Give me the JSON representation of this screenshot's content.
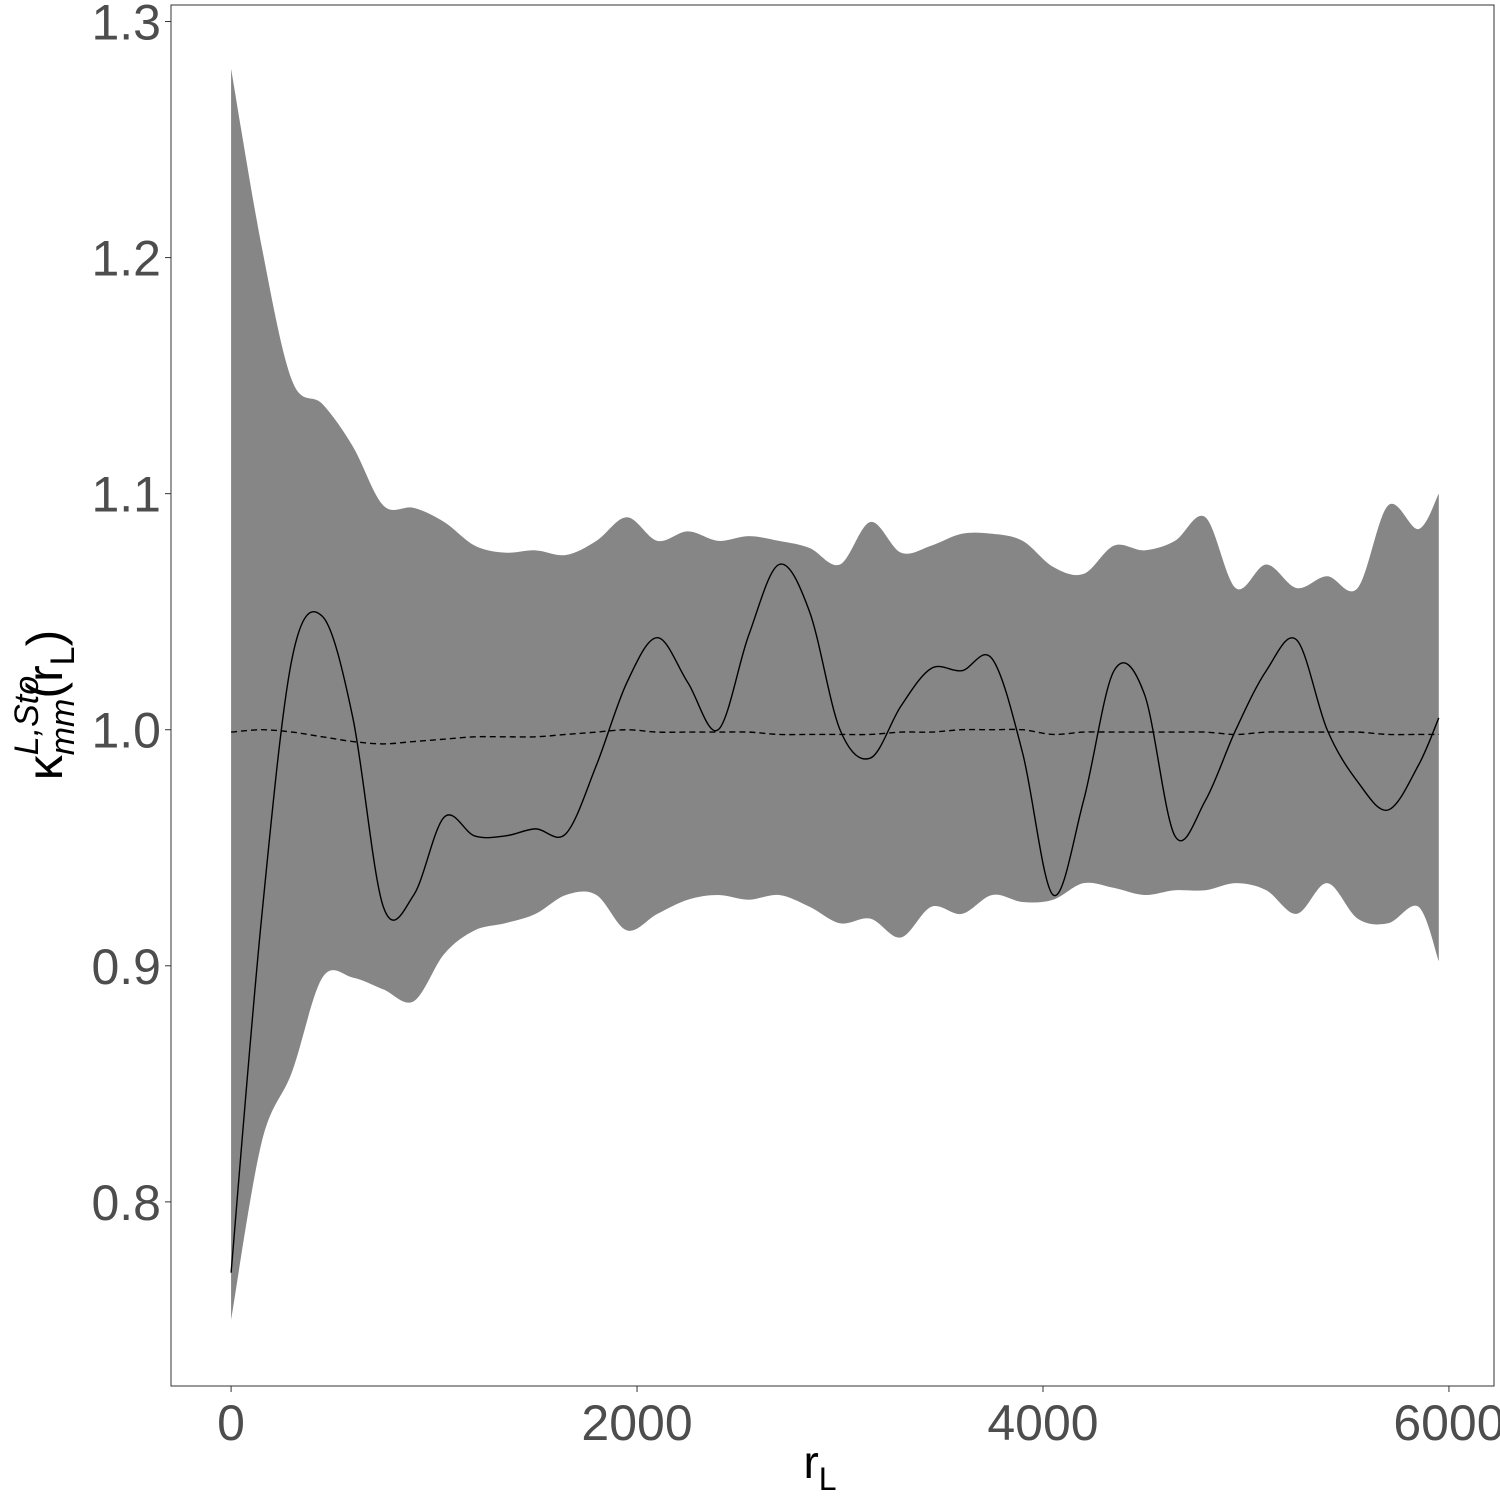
{
  "chart_data": {
    "type": "band-line",
    "x_label": {
      "text": "r",
      "subscript": "L"
    },
    "y_label": {
      "symbol": "κ",
      "superscript": "L,Sto",
      "subscript": "mm",
      "argument": "(r",
      "argument_subscript": "L",
      "closing": ")"
    },
    "x": [
      0,
      150,
      300,
      450,
      600,
      750,
      900,
      1050,
      1200,
      1350,
      1500,
      1650,
      1800,
      1950,
      2100,
      2250,
      2400,
      2550,
      2700,
      2850,
      3000,
      3150,
      3300,
      3450,
      3600,
      3750,
      3900,
      4050,
      4200,
      4350,
      4500,
      4650,
      4800,
      4950,
      5100,
      5250,
      5400,
      5550,
      5700,
      5850,
      5950
    ],
    "band": {
      "color": "#868686",
      "upper": [
        1.28,
        1.205,
        1.148,
        1.138,
        1.12,
        1.095,
        1.094,
        1.088,
        1.078,
        1.075,
        1.076,
        1.074,
        1.08,
        1.09,
        1.08,
        1.084,
        1.08,
        1.082,
        1.08,
        1.077,
        1.07,
        1.088,
        1.075,
        1.078,
        1.083,
        1.083,
        1.08,
        1.069,
        1.066,
        1.078,
        1.076,
        1.08,
        1.09,
        1.06,
        1.07,
        1.06,
        1.065,
        1.06,
        1.095,
        1.085,
        1.1
      ],
      "lower": [
        0.75,
        0.825,
        0.855,
        0.895,
        0.895,
        0.89,
        0.885,
        0.905,
        0.915,
        0.918,
        0.922,
        0.93,
        0.93,
        0.915,
        0.922,
        0.928,
        0.93,
        0.928,
        0.93,
        0.925,
        0.918,
        0.92,
        0.912,
        0.925,
        0.922,
        0.93,
        0.927,
        0.928,
        0.935,
        0.933,
        0.93,
        0.932,
        0.932,
        0.935,
        0.932,
        0.922,
        0.935,
        0.92,
        0.918,
        0.925,
        0.902
      ]
    },
    "observed": {
      "color": "#000000",
      "dash": false,
      "values": [
        0.77,
        0.92,
        1.03,
        1.048,
        1.005,
        0.925,
        0.93,
        0.963,
        0.955,
        0.955,
        0.958,
        0.956,
        0.985,
        1.02,
        1.039,
        1.02,
        1.0,
        1.04,
        1.07,
        1.05,
        1.0,
        0.988,
        1.01,
        1.026,
        1.025,
        1.03,
        0.99,
        0.93,
        0.97,
        1.025,
        1.015,
        0.955,
        0.97,
        1.0,
        1.025,
        1.038,
        1.0,
        0.978,
        0.966,
        0.985,
        1.005
      ]
    },
    "theoretical": {
      "color": "#000000",
      "dash": true,
      "values": [
        0.999,
        1.0,
        0.999,
        0.997,
        0.995,
        0.994,
        0.995,
        0.996,
        0.997,
        0.997,
        0.997,
        0.998,
        0.999,
        1.0,
        0.999,
        0.999,
        0.999,
        0.999,
        0.998,
        0.998,
        0.998,
        0.998,
        0.999,
        0.999,
        1.0,
        1.0,
        1.0,
        0.998,
        0.999,
        0.999,
        0.999,
        0.999,
        0.999,
        0.998,
        0.999,
        0.999,
        0.999,
        0.999,
        0.998,
        0.998,
        0.998
      ]
    },
    "xlim": [
      -296,
      6222
    ],
    "ylim": [
      0.722,
      1.307
    ],
    "xticks": [
      0,
      2000,
      4000,
      6000
    ],
    "yticks": [
      0.8,
      0.9,
      {
        "value": 1,
        "label": "1.0"
      },
      1.1,
      1.2,
      1.3
    ]
  }
}
